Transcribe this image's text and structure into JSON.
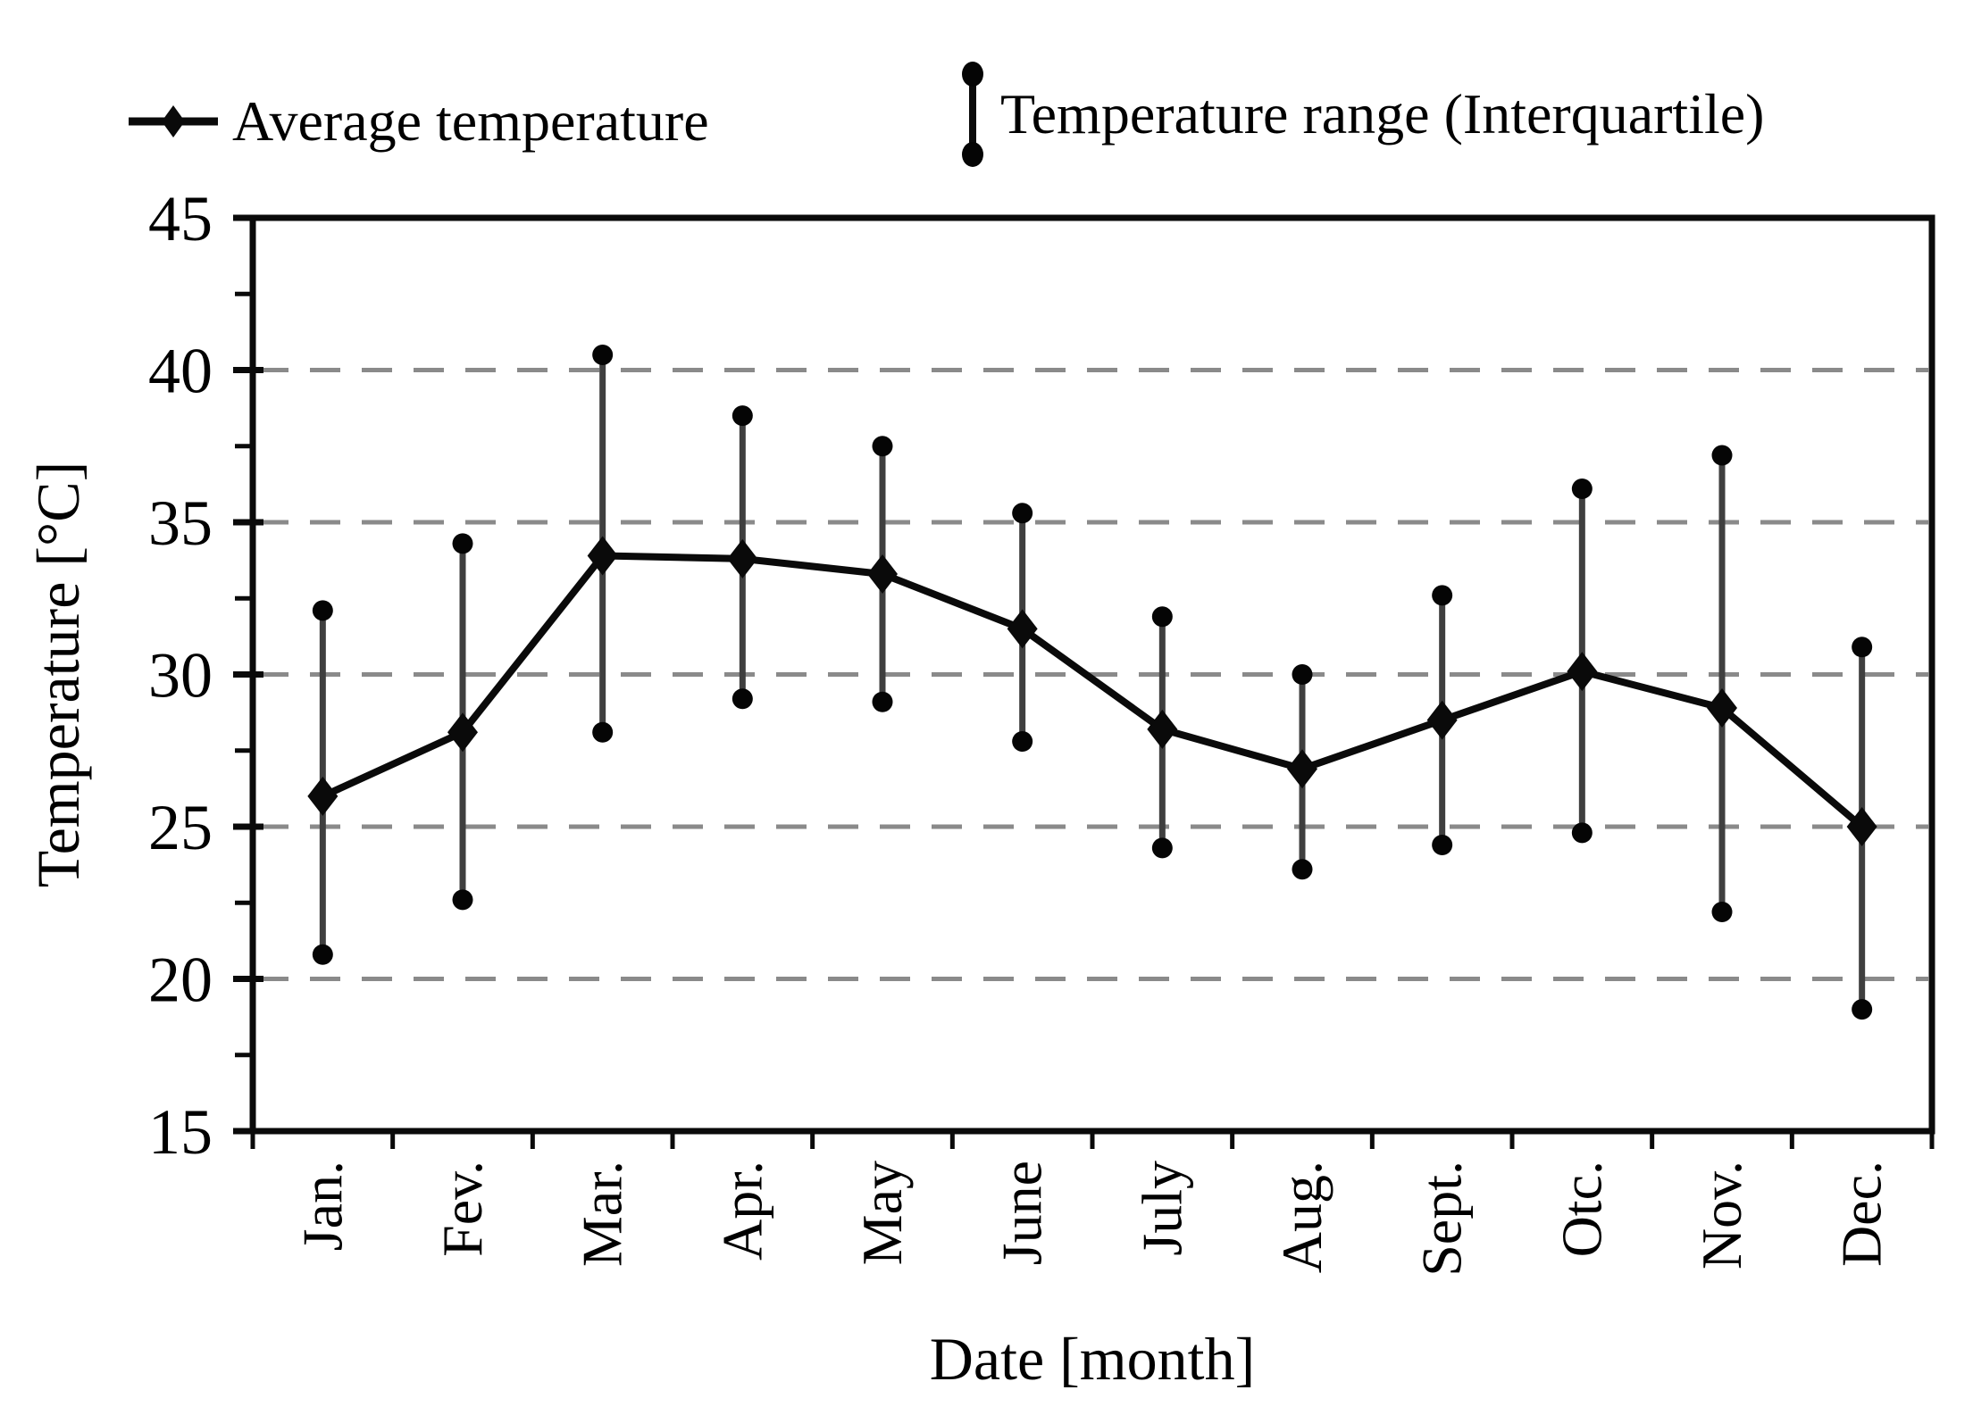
{
  "chart_data": {
    "type": "line",
    "title": "",
    "xlabel": "Date [month]",
    "ylabel": "Temperature [°C]",
    "categories": [
      "Jan.",
      "Fev.",
      "Mar.",
      "Apr.",
      "May",
      "June",
      "July",
      "Aug.",
      "Sept.",
      "Otc.",
      "Nov.",
      "Dec."
    ],
    "series": [
      {
        "name": "Average temperature",
        "marker": "diamond-on-line",
        "values": [
          26.0,
          28.1,
          33.9,
          33.8,
          33.3,
          31.5,
          28.2,
          26.9,
          28.5,
          30.1,
          28.9,
          25.0
        ]
      },
      {
        "name": "Temperature range (Interquartile)",
        "marker": "vertical-line-with-dots",
        "lower": [
          20.8,
          22.6,
          28.1,
          29.2,
          29.1,
          27.8,
          24.3,
          23.6,
          24.4,
          24.8,
          22.2,
          19.0
        ],
        "upper": [
          32.1,
          34.3,
          40.5,
          38.5,
          37.5,
          35.3,
          31.9,
          30.0,
          32.6,
          36.1,
          37.2,
          30.9
        ]
      }
    ],
    "ylim": [
      15,
      45
    ],
    "yticks": [
      15,
      20,
      25,
      30,
      35,
      40,
      45
    ],
    "ytick_minor_step": 2.5,
    "grid": "horizontal dashed gridlines at 20, 25, 30, 35, 40",
    "legend_position": "top",
    "plot_border": "full box"
  },
  "colors": {
    "background": "#ffffff",
    "text": "#000000",
    "axis": "#0a0a0a",
    "gridline": "#8a8a8a",
    "average_line": "#0a0a0a",
    "marker": "#0a0a0a",
    "error_bar_line": "#3f3f3f",
    "error_bar_dot": "#050505"
  }
}
